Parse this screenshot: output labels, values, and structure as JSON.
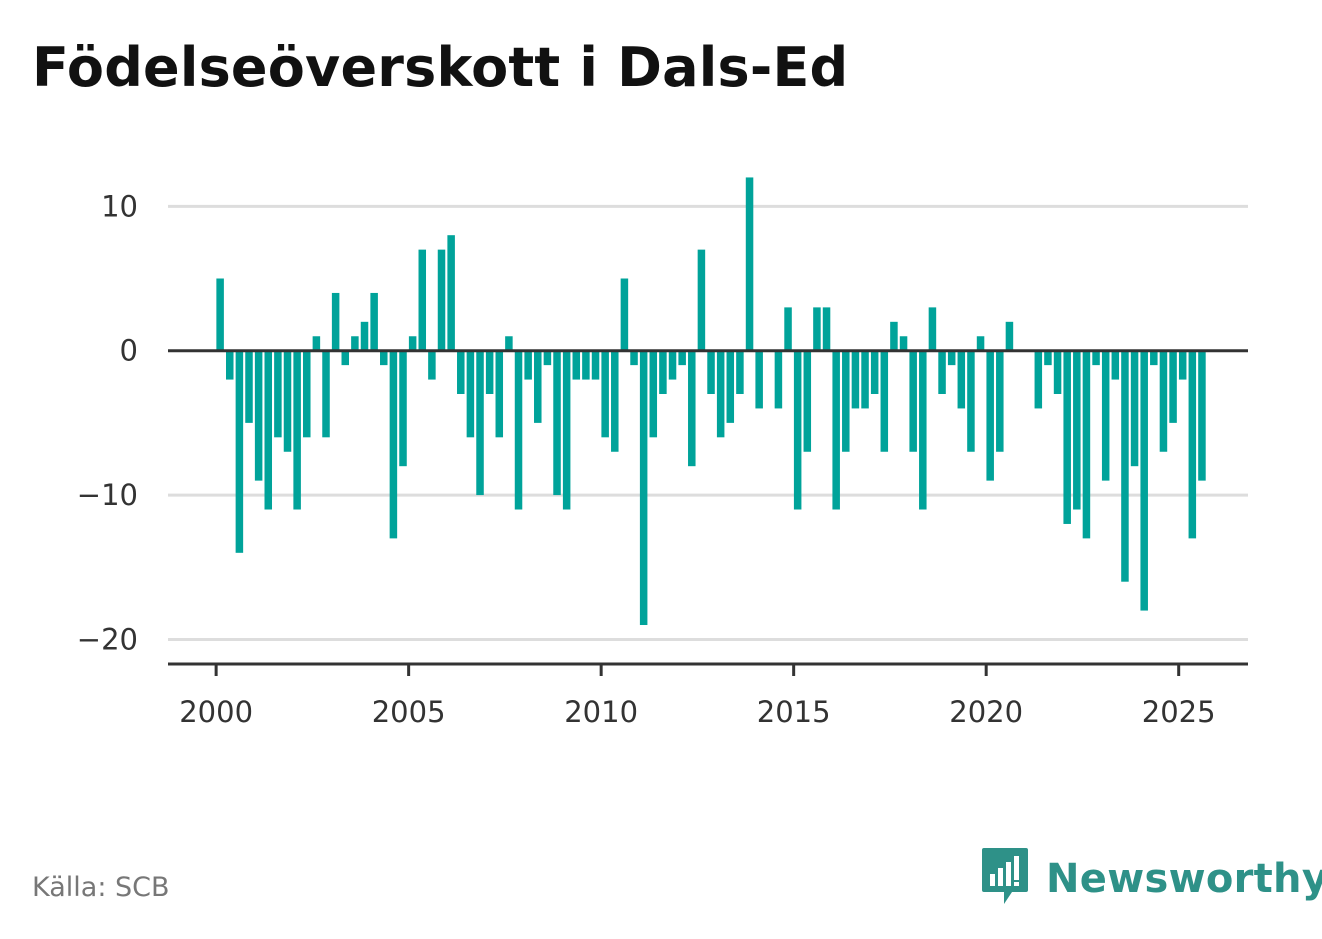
{
  "title": "Födelseöverskott i Dals-Ed",
  "source": "Källa: SCB",
  "brand": {
    "name": "Newsworthy",
    "icon": "newsworthy-logo-icon",
    "color": "#2e9188"
  },
  "colors": {
    "bar": "#00a39a",
    "zero_line": "#333333",
    "grid": "#dddddd",
    "axis": "#333333"
  },
  "chart_data": {
    "type": "bar",
    "title": "Födelseöverskott i Dals-Ed",
    "xlabel": "",
    "ylabel": "",
    "frequency": "quarterly",
    "x_start": "2000 Q1",
    "ylim": [
      -21.7,
      13
    ],
    "xlim": [
      1998.75,
      2026.8
    ],
    "x_ticks": [
      2000,
      2005,
      2010,
      2015,
      2020,
      2025
    ],
    "y_ticks": [
      10,
      0,
      -10,
      -20
    ],
    "y_tick_labels": [
      "10",
      "0",
      "−10",
      "−20"
    ],
    "grid": true,
    "values": [
      5,
      -2,
      -14,
      -5,
      -9,
      -11,
      -6,
      -7,
      -11,
      -6,
      1,
      -6,
      4,
      -1,
      1,
      2,
      4,
      -1,
      -13,
      -8,
      1,
      7,
      -2,
      7,
      8,
      -3,
      -6,
      -10,
      -3,
      -6,
      1,
      -11,
      -2,
      -5,
      -1,
      -10,
      -11,
      -2,
      -2,
      -2,
      -6,
      -7,
      5,
      -1,
      -19,
      -6,
      -3,
      -2,
      -1,
      -8,
      7,
      -3,
      -6,
      -5,
      -3,
      12,
      -4,
      0,
      -4,
      3,
      -11,
      -7,
      3,
      3,
      -11,
      -7,
      -4,
      -4,
      -3,
      -7,
      2,
      1,
      -7,
      -11,
      3,
      -3,
      -1,
      -4,
      -7,
      1,
      -9,
      -7,
      2,
      0,
      0,
      -4,
      -1,
      -3,
      -12,
      -11,
      -13,
      -1,
      -9,
      -2,
      -16,
      -8,
      -18,
      -1,
      -7,
      -5,
      -2,
      -13,
      -9
    ]
  }
}
